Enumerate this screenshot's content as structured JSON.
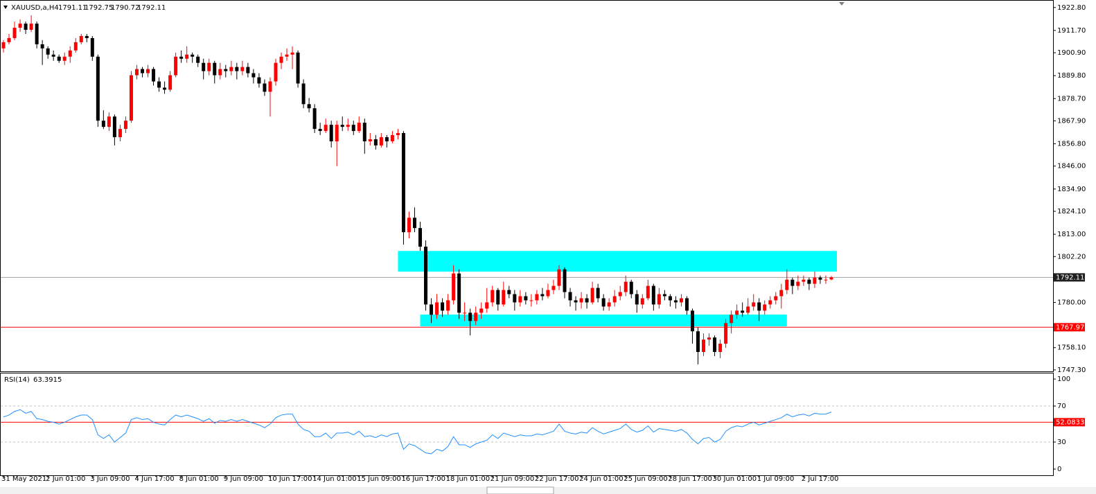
{
  "chart_data": [
    {
      "type": "candlestick",
      "title": "XAUUSD,a,H4",
      "up_color": "#ff0000",
      "down_color": "#000000",
      "ylim": [
        1746.6,
        1926.1
      ],
      "yticks": [
        {
          "value": 1922.8,
          "label": "1922.80"
        },
        {
          "value": 1911.7,
          "label": "1911.70"
        },
        {
          "value": 1900.9,
          "label": "1900.90"
        },
        {
          "value": 1889.8,
          "label": "1889.80"
        },
        {
          "value": 1878.7,
          "label": "1878.70"
        },
        {
          "value": 1867.9,
          "label": "1867.90"
        },
        {
          "value": 1856.8,
          "label": "1856.80"
        },
        {
          "value": 1846.0,
          "label": "1846.00"
        },
        {
          "value": 1834.9,
          "label": "1834.90"
        },
        {
          "value": 1824.1,
          "label": "1824.10"
        },
        {
          "value": 1813.0,
          "label": "1813.00"
        },
        {
          "value": 1802.2,
          "label": "1802.20"
        },
        {
          "value": 1780.0,
          "label": "1780.00"
        },
        {
          "value": 1758.1,
          "label": "1758.10"
        },
        {
          "value": 1747.3,
          "label": "1747.30"
        }
      ],
      "price_line_color": "#a0a0a0",
      "hlines": [
        {
          "value": 1767.97,
          "color": "#ff0000"
        }
      ],
      "zones": [
        {
          "x": [
            71,
            150
          ],
          "y": [
            1794.9,
            1804.9
          ],
          "color": "#00ffff"
        },
        {
          "x": [
            75,
            141
          ],
          "y": [
            1768.4,
            1774.1
          ],
          "color": "#00ffff"
        }
      ],
      "categories": [
        "31 May 2021",
        null,
        null,
        null,
        null,
        null,
        null,
        null,
        "2 Jun 01:00",
        null,
        null,
        null,
        null,
        null,
        null,
        null,
        "3 Jun 09:00",
        null,
        null,
        null,
        null,
        null,
        null,
        null,
        "4 Jun 17:00",
        null,
        null,
        null,
        null,
        null,
        null,
        null,
        "8 Jun 01:00",
        null,
        null,
        null,
        null,
        null,
        null,
        null,
        "9 Jun 09:00",
        null,
        null,
        null,
        null,
        null,
        null,
        null,
        "10 Jun 17:00",
        null,
        null,
        null,
        null,
        null,
        null,
        null,
        "14 Jun 01:00",
        null,
        null,
        null,
        null,
        null,
        null,
        null,
        "15 Jun 09:00",
        null,
        null,
        null,
        null,
        null,
        null,
        null,
        "16 Jun 17:00",
        null,
        null,
        null,
        null,
        null,
        null,
        null,
        "18 Jun 01:00",
        null,
        null,
        null,
        null,
        null,
        null,
        null,
        "21 Jun 09:00",
        null,
        null,
        null,
        null,
        null,
        null,
        null,
        "22 Jun 17:00",
        null,
        null,
        null,
        null,
        null,
        null,
        null,
        "24 Jun 01:00",
        null,
        null,
        null,
        null,
        null,
        null,
        null,
        "25 Jun 09:00",
        null,
        null,
        null,
        null,
        null,
        null,
        null,
        "28 Jun 17:00",
        null,
        null,
        null,
        null,
        null,
        null,
        null,
        "30 Jun 01:00",
        null,
        null,
        null,
        null,
        null,
        null,
        null,
        "1 Jul 09:00",
        null,
        null,
        null,
        null,
        null,
        null,
        null,
        "2 Jul 17:00",
        null,
        null,
        null,
        null,
        null
      ],
      "ohlc": [
        [
          1903,
          1907,
          1901,
          1906
        ],
        [
          1906,
          1910,
          1905,
          1908
        ],
        [
          1908,
          1916,
          1907,
          1913
        ],
        [
          1913,
          1917,
          1911,
          1915
        ],
        [
          1915,
          1916,
          1910,
          1912
        ],
        [
          1912,
          1919,
          1911,
          1915
        ],
        [
          1915,
          1916,
          1903,
          1905
        ],
        [
          1905,
          1907,
          1895,
          1903
        ],
        [
          1903,
          1904,
          1898,
          1900
        ],
        [
          1900,
          1902,
          1897,
          1899
        ],
        [
          1899,
          1900,
          1896,
          1897
        ],
        [
          1897,
          1901,
          1895,
          1899
        ],
        [
          1899,
          1904,
          1896,
          1902
        ],
        [
          1902,
          1908,
          1901,
          1906
        ],
        [
          1906,
          1910,
          1905,
          1909
        ],
        [
          1909,
          1910,
          1906,
          1908
        ],
        [
          1908,
          1909,
          1897,
          1899
        ],
        [
          1899,
          1900,
          1865,
          1868
        ],
        [
          1868,
          1873,
          1864,
          1865
        ],
        [
          1865,
          1872,
          1863,
          1870
        ],
        [
          1870,
          1871,
          1856,
          1860
        ],
        [
          1860,
          1866,
          1858,
          1864
        ],
        [
          1864,
          1870,
          1862,
          1868
        ],
        [
          1868,
          1892,
          1867,
          1890
        ],
        [
          1890,
          1895,
          1888,
          1893
        ],
        [
          1893,
          1894,
          1889,
          1891
        ],
        [
          1891,
          1895,
          1889,
          1893
        ],
        [
          1893,
          1894,
          1885,
          1887
        ],
        [
          1887,
          1889,
          1882,
          1884
        ],
        [
          1884,
          1887,
          1881,
          1883
        ],
        [
          1883,
          1892,
          1882,
          1890
        ],
        [
          1890,
          1901,
          1889,
          1899
        ],
        [
          1899,
          1902,
          1896,
          1898
        ],
        [
          1898,
          1904,
          1896,
          1900
        ],
        [
          1900,
          1901,
          1896,
          1899
        ],
        [
          1899,
          1900,
          1894,
          1896
        ],
        [
          1896,
          1898,
          1888,
          1892
        ],
        [
          1892,
          1898,
          1890,
          1896
        ],
        [
          1896,
          1897,
          1886,
          1890
        ],
        [
          1890,
          1896,
          1888,
          1893
        ],
        [
          1893,
          1895,
          1889,
          1892
        ],
        [
          1892,
          1897,
          1890,
          1894
        ],
        [
          1894,
          1896,
          1888,
          1892
        ],
        [
          1892,
          1897,
          1890,
          1894
        ],
        [
          1894,
          1896,
          1889,
          1891
        ],
        [
          1891,
          1893,
          1886,
          1889
        ],
        [
          1889,
          1891,
          1884,
          1886
        ],
        [
          1886,
          1888,
          1880,
          1882
        ],
        [
          1882,
          1889,
          1870,
          1887
        ],
        [
          1887,
          1898,
          1885,
          1896
        ],
        [
          1896,
          1901,
          1893,
          1899
        ],
        [
          1899,
          1903,
          1897,
          1900
        ],
        [
          1900,
          1904,
          1893,
          1901
        ],
        [
          1901,
          1902,
          1884,
          1886
        ],
        [
          1886,
          1888,
          1874,
          1876
        ],
        [
          1876,
          1879,
          1872,
          1874
        ],
        [
          1874,
          1876,
          1862,
          1864
        ],
        [
          1864,
          1867,
          1861,
          1863
        ],
        [
          1863,
          1869,
          1862,
          1866
        ],
        [
          1866,
          1868,
          1855,
          1858
        ],
        [
          1858,
          1868,
          1846,
          1866
        ],
        [
          1866,
          1870,
          1863,
          1865
        ],
        [
          1865,
          1869,
          1863,
          1866
        ],
        [
          1866,
          1868,
          1861,
          1863
        ],
        [
          1863,
          1870,
          1862,
          1867
        ],
        [
          1867,
          1869,
          1852,
          1858
        ],
        [
          1858,
          1862,
          1856,
          1859
        ],
        [
          1859,
          1861,
          1854,
          1856
        ],
        [
          1856,
          1862,
          1855,
          1860
        ],
        [
          1860,
          1861,
          1855,
          1858
        ],
        [
          1858,
          1863,
          1857,
          1861
        ],
        [
          1861,
          1864,
          1859,
          1862
        ],
        [
          1862,
          1863,
          1808,
          1814
        ],
        [
          1814,
          1824,
          1811,
          1821
        ],
        [
          1821,
          1826,
          1814,
          1816
        ],
        [
          1816,
          1819,
          1805,
          1807
        ],
        [
          1807,
          1810,
          1776,
          1779
        ],
        [
          1779,
          1782,
          1770,
          1774
        ],
        [
          1774,
          1784,
          1772,
          1780
        ],
        [
          1780,
          1782,
          1773,
          1776
        ],
        [
          1776,
          1784,
          1774,
          1781
        ],
        [
          1781,
          1798,
          1779,
          1794
        ],
        [
          1794,
          1796,
          1772,
          1775
        ],
        [
          1775,
          1780,
          1771,
          1775
        ],
        [
          1775,
          1777,
          1764,
          1771
        ],
        [
          1771,
          1778,
          1769,
          1775
        ],
        [
          1775,
          1780,
          1772,
          1777
        ],
        [
          1777,
          1787,
          1775,
          1780
        ],
        [
          1780,
          1788,
          1778,
          1786
        ],
        [
          1786,
          1787,
          1776,
          1779
        ],
        [
          1779,
          1790,
          1778,
          1786
        ],
        [
          1786,
          1788,
          1782,
          1784
        ],
        [
          1784,
          1786,
          1776,
          1780
        ],
        [
          1780,
          1786,
          1778,
          1783
        ],
        [
          1783,
          1785,
          1779,
          1781
        ],
        [
          1781,
          1784,
          1778,
          1781
        ],
        [
          1781,
          1786,
          1779,
          1784
        ],
        [
          1784,
          1787,
          1781,
          1783
        ],
        [
          1783,
          1789,
          1782,
          1786
        ],
        [
          1786,
          1791,
          1784,
          1788
        ],
        [
          1788,
          1798,
          1786,
          1796
        ],
        [
          1796,
          1797,
          1782,
          1785
        ],
        [
          1785,
          1787,
          1778,
          1781
        ],
        [
          1781,
          1783,
          1776,
          1780
        ],
        [
          1780,
          1785,
          1777,
          1782
        ],
        [
          1782,
          1784,
          1777,
          1780
        ],
        [
          1780,
          1790,
          1779,
          1787
        ],
        [
          1787,
          1789,
          1780,
          1782
        ],
        [
          1782,
          1784,
          1776,
          1778
        ],
        [
          1778,
          1782,
          1776,
          1780
        ],
        [
          1780,
          1786,
          1778,
          1783
        ],
        [
          1783,
          1788,
          1781,
          1785
        ],
        [
          1785,
          1793,
          1783,
          1790
        ],
        [
          1790,
          1791,
          1782,
          1784
        ],
        [
          1784,
          1786,
          1775,
          1779
        ],
        [
          1779,
          1784,
          1777,
          1782
        ],
        [
          1782,
          1791,
          1781,
          1788
        ],
        [
          1788,
          1789,
          1776,
          1779
        ],
        [
          1779,
          1787,
          1777,
          1784
        ],
        [
          1784,
          1786,
          1781,
          1783
        ],
        [
          1783,
          1784,
          1778,
          1781
        ],
        [
          1781,
          1783,
          1777,
          1780
        ],
        [
          1780,
          1784,
          1778,
          1782
        ],
        [
          1782,
          1783,
          1774,
          1776
        ],
        [
          1776,
          1777,
          1760,
          1766
        ],
        [
          1766,
          1768,
          1750,
          1756
        ],
        [
          1756,
          1765,
          1754,
          1762
        ],
        [
          1762,
          1765,
          1759,
          1763
        ],
        [
          1763,
          1764,
          1754,
          1756
        ],
        [
          1756,
          1762,
          1753,
          1760
        ],
        [
          1760,
          1772,
          1758,
          1770
        ],
        [
          1770,
          1776,
          1765,
          1774
        ],
        [
          1774,
          1779,
          1772,
          1776
        ],
        [
          1776,
          1780,
          1773,
          1775
        ],
        [
          1775,
          1782,
          1774,
          1778
        ],
        [
          1778,
          1784,
          1776,
          1780
        ],
        [
          1780,
          1782,
          1771,
          1776
        ],
        [
          1776,
          1781,
          1774,
          1779
        ],
        [
          1779,
          1783,
          1777,
          1781
        ],
        [
          1781,
          1785,
          1779,
          1783
        ],
        [
          1783,
          1789,
          1777,
          1786
        ],
        [
          1786,
          1796,
          1784,
          1791
        ],
        [
          1791,
          1792,
          1784,
          1788
        ],
        [
          1788,
          1793,
          1786,
          1790
        ],
        [
          1790,
          1793,
          1788,
          1791
        ],
        [
          1791,
          1792,
          1786,
          1789
        ],
        [
          1789,
          1795,
          1787,
          1792
        ],
        [
          1792,
          1793,
          1789,
          1791
        ],
        [
          1791,
          1793,
          1789,
          1791
        ],
        [
          1791.11,
          1792.75,
          1790.72,
          1792.11
        ]
      ]
    },
    {
      "type": "line",
      "title": "RSI(14)",
      "color": "#1e90ff",
      "ylim": [
        -6.9,
        106.2
      ],
      "yticks": [
        100,
        70,
        30,
        0
      ],
      "levels": [
        {
          "value": 70,
          "color": "#c0c0c0"
        },
        {
          "value": 30,
          "color": "#c0c0c0"
        }
      ],
      "hlines": [
        {
          "value": 52.0833,
          "color": "#ff0000"
        }
      ],
      "values": [
        58,
        60,
        64,
        66,
        62,
        64,
        56,
        55,
        53,
        52,
        50,
        52,
        55,
        58,
        60,
        60,
        55,
        38,
        34,
        38,
        30,
        35,
        40,
        55,
        57,
        55,
        56,
        52,
        50,
        49,
        55,
        60,
        58,
        60,
        58,
        56,
        53,
        56,
        51,
        54,
        53,
        55,
        53,
        55,
        53,
        51,
        49,
        46,
        50,
        57,
        60,
        61,
        61,
        50,
        44,
        42,
        36,
        36,
        40,
        34,
        40,
        40,
        41,
        38,
        42,
        36,
        37,
        35,
        38,
        36,
        39,
        40,
        22,
        28,
        26,
        22,
        18,
        17,
        22,
        20,
        25,
        36,
        27,
        27,
        24,
        28,
        30,
        32,
        38,
        34,
        40,
        38,
        36,
        38,
        37,
        37,
        39,
        38,
        40,
        42,
        50,
        42,
        40,
        39,
        41,
        40,
        46,
        42,
        39,
        41,
        43,
        45,
        50,
        44,
        41,
        43,
        48,
        41,
        45,
        44,
        43,
        42,
        44,
        40,
        33,
        28,
        34,
        35,
        30,
        33,
        42,
        46,
        48,
        47,
        50,
        52,
        49,
        51,
        53,
        55,
        57,
        61,
        58,
        60,
        61,
        59,
        62,
        61,
        61,
        63.3915
      ]
    }
  ]
}
